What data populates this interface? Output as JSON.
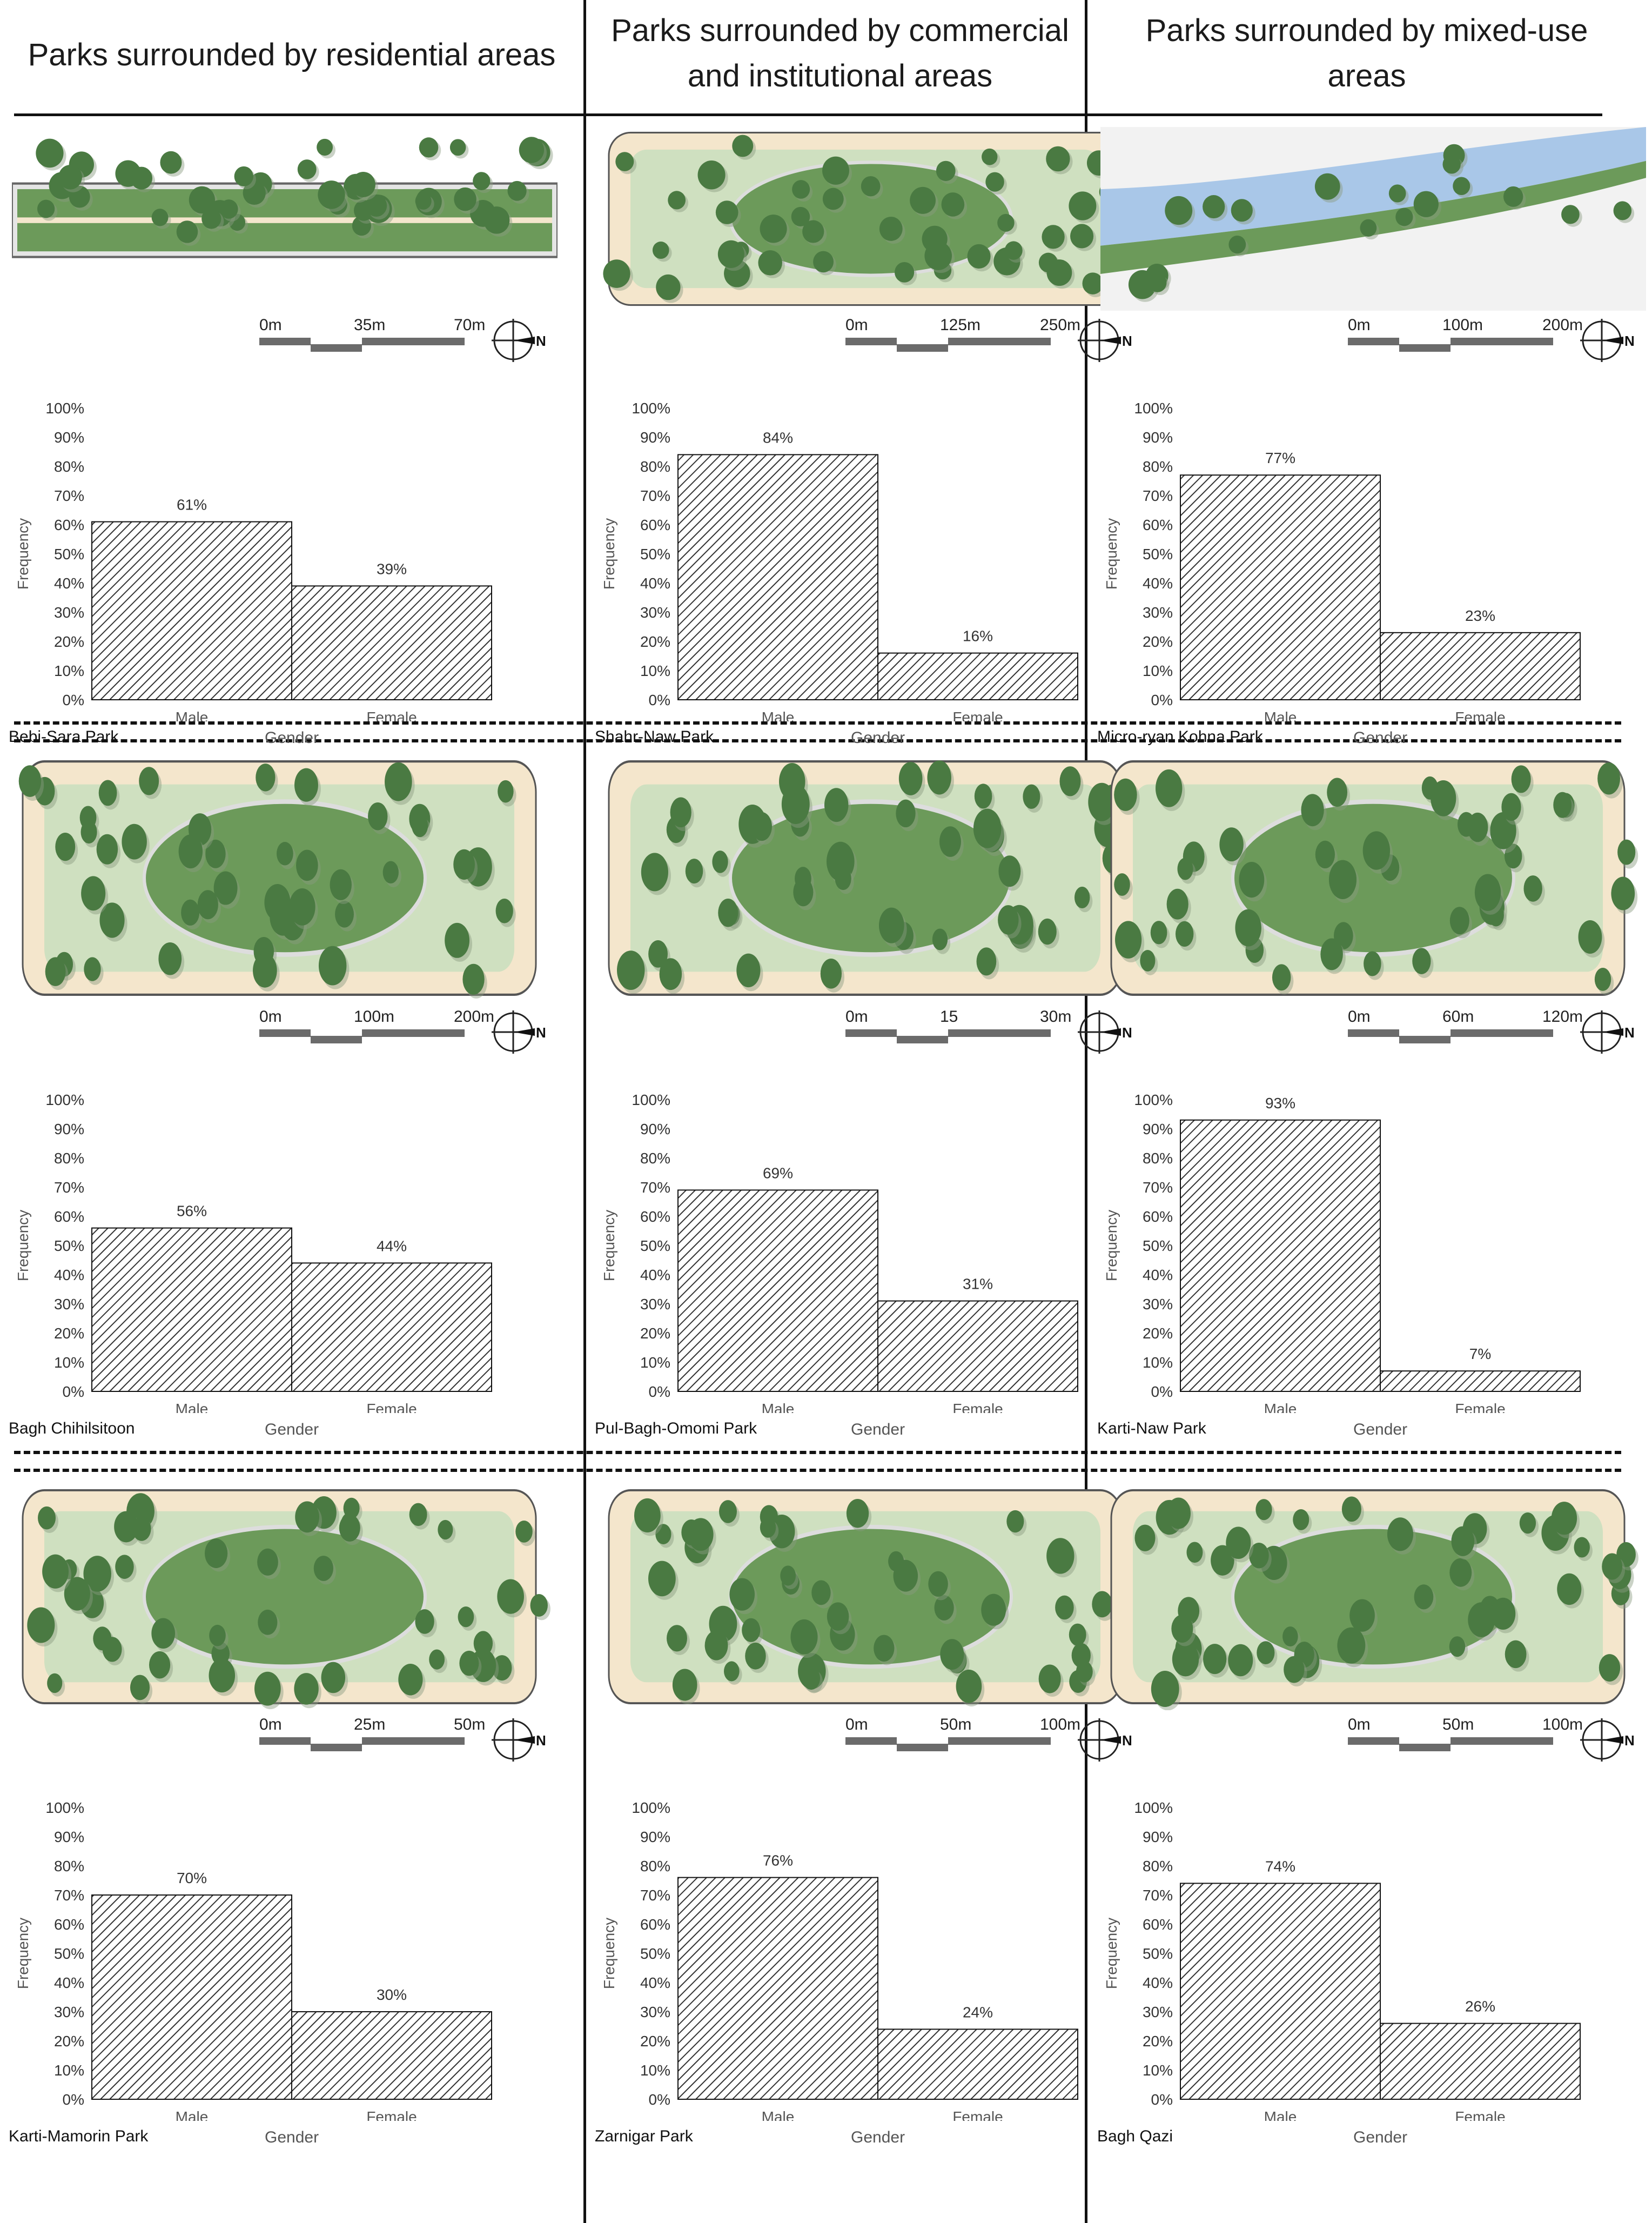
{
  "headers": [
    "Parks surrounded by residential areas",
    "Parks surrounded by commercial and institutional areas",
    "Parks surrounded by mixed-use areas"
  ],
  "colors": {
    "ink": "#111111",
    "hatch": "#333333",
    "map_green": "#6c9a5a",
    "map_light": "#cfe0c0",
    "tree": "#4a7a42",
    "water": "#a9c7e8",
    "beige": "#f4e6cc"
  },
  "chart_data": [
    {
      "type": "bar",
      "park": "Bebi-Sara Park",
      "categories": [
        "Male",
        "Female"
      ],
      "values": [
        61,
        39
      ],
      "value_labels": [
        "61%",
        "39%"
      ],
      "xlabel": "Gender",
      "ylabel": "Frequency",
      "ylim": [
        0,
        100
      ],
      "yticks": [
        "0%",
        "10%",
        "20%",
        "30%",
        "40%",
        "50%",
        "60%",
        "70%",
        "80%",
        "90%",
        "100%"
      ],
      "scale": [
        "0m",
        "35m",
        "70m"
      ],
      "north": "N"
    },
    {
      "type": "bar",
      "park": "Shahr-Naw Park",
      "categories": [
        "Male",
        "Female"
      ],
      "values": [
        84,
        16
      ],
      "value_labels": [
        "84%",
        "16%"
      ],
      "xlabel": "Gender",
      "ylabel": "Frequency",
      "ylim": [
        0,
        100
      ],
      "yticks": [
        "0%",
        "10%",
        "20%",
        "30%",
        "40%",
        "50%",
        "60%",
        "70%",
        "80%",
        "90%",
        "100%"
      ],
      "scale": [
        "0m",
        "125m",
        "250m"
      ],
      "north": "N"
    },
    {
      "type": "bar",
      "park": "Micro-ryan Kohna Park",
      "categories": [
        "Male",
        "Female"
      ],
      "values": [
        77,
        23
      ],
      "value_labels": [
        "77%",
        "23%"
      ],
      "xlabel": "Gender",
      "ylabel": "Frequency",
      "ylim": [
        0,
        100
      ],
      "yticks": [
        "0%",
        "10%",
        "20%",
        "30%",
        "40%",
        "50%",
        "60%",
        "70%",
        "80%",
        "90%",
        "100%"
      ],
      "scale": [
        "0m",
        "100m",
        "200m"
      ],
      "north": "N"
    },
    {
      "type": "bar",
      "park": "Bagh Chihilsitoon",
      "categories": [
        "Male",
        "Female"
      ],
      "values": [
        56,
        44
      ],
      "value_labels": [
        "56%",
        "44%"
      ],
      "xlabel": "Gender",
      "ylabel": "Frequency",
      "ylim": [
        0,
        100
      ],
      "yticks": [
        "0%",
        "10%",
        "20%",
        "30%",
        "40%",
        "50%",
        "60%",
        "70%",
        "80%",
        "90%",
        "100%"
      ],
      "scale": [
        "0m",
        "100m",
        "200m"
      ],
      "north": "N"
    },
    {
      "type": "bar",
      "park": "Pul-Bagh-Omomi Park",
      "categories": [
        "Male",
        "Female"
      ],
      "values": [
        69,
        31
      ],
      "value_labels": [
        "69%",
        "31%"
      ],
      "xlabel": "Gender",
      "ylabel": "Frequency",
      "ylim": [
        0,
        100
      ],
      "yticks": [
        "0%",
        "10%",
        "20%",
        "30%",
        "40%",
        "50%",
        "60%",
        "70%",
        "80%",
        "90%",
        "100%"
      ],
      "scale": [
        "0m",
        "15",
        "30m"
      ],
      "north": "N"
    },
    {
      "type": "bar",
      "park": "Karti-Naw Park",
      "categories": [
        "Male",
        "Female"
      ],
      "values": [
        93,
        7
      ],
      "value_labels": [
        "93%",
        "7%"
      ],
      "xlabel": "Gender",
      "ylabel": "Frequency",
      "ylim": [
        0,
        100
      ],
      "yticks": [
        "0%",
        "10%",
        "20%",
        "30%",
        "40%",
        "50%",
        "60%",
        "70%",
        "80%",
        "90%",
        "100%"
      ],
      "scale": [
        "0m",
        "60m",
        "120m"
      ],
      "north": "N"
    },
    {
      "type": "bar",
      "park": "Karti-Mamorin Park",
      "categories": [
        "Male",
        "Female"
      ],
      "values": [
        70,
        30
      ],
      "value_labels": [
        "70%",
        "30%"
      ],
      "xlabel": "Gender",
      "ylabel": "Frequency",
      "ylim": [
        0,
        100
      ],
      "yticks": [
        "0%",
        "10%",
        "20%",
        "30%",
        "40%",
        "50%",
        "60%",
        "70%",
        "80%",
        "90%",
        "100%"
      ],
      "scale": [
        "0m",
        "25m",
        "50m"
      ],
      "north": "N"
    },
    {
      "type": "bar",
      "park": "Zarnigar Park",
      "categories": [
        "Male",
        "Female"
      ],
      "values": [
        76,
        24
      ],
      "value_labels": [
        "76%",
        "24%"
      ],
      "xlabel": "Gender",
      "ylabel": "Frequency",
      "ylim": [
        0,
        100
      ],
      "yticks": [
        "0%",
        "10%",
        "20%",
        "30%",
        "40%",
        "50%",
        "60%",
        "70%",
        "80%",
        "90%",
        "100%"
      ],
      "scale": [
        "0m",
        "50m",
        "100m"
      ],
      "north": "N"
    },
    {
      "type": "bar",
      "park": "Bagh Qazi",
      "categories": [
        "Male",
        "Female"
      ],
      "values": [
        74,
        26
      ],
      "value_labels": [
        "74%",
        "26%"
      ],
      "xlabel": "Gender",
      "ylabel": "Frequency",
      "ylim": [
        0,
        100
      ],
      "yticks": [
        "0%",
        "10%",
        "20%",
        "30%",
        "40%",
        "50%",
        "60%",
        "70%",
        "80%",
        "90%",
        "100%"
      ],
      "scale": [
        "0m",
        "50m",
        "100m"
      ],
      "north": "N"
    }
  ]
}
